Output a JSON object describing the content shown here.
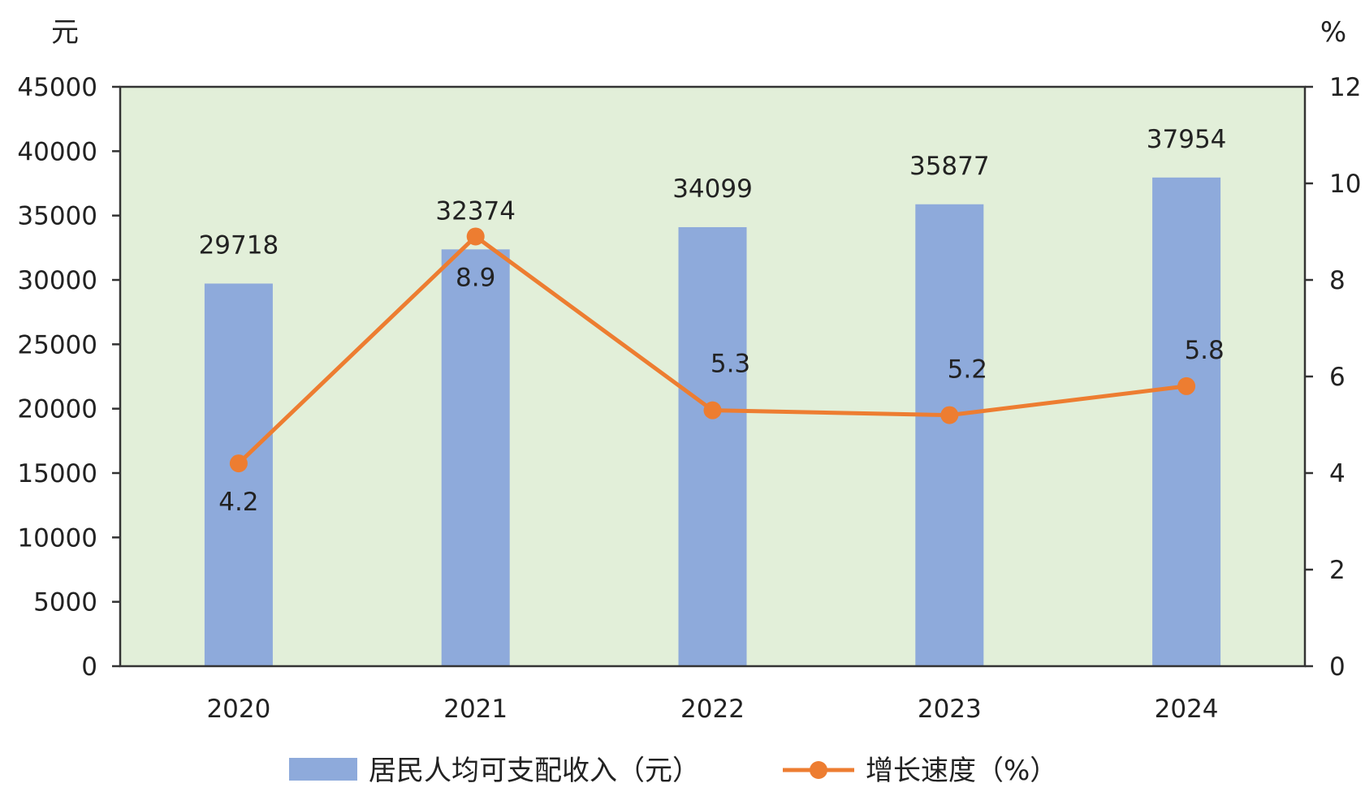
{
  "chart_data": {
    "type": "bar",
    "categories": [
      "2020",
      "2021",
      "2022",
      "2023",
      "2024"
    ],
    "series": [
      {
        "name": "居民人均可支配收入（元）",
        "type": "bar",
        "axis": "left",
        "values": [
          29718,
          32374,
          34099,
          35877,
          37954
        ]
      },
      {
        "name": "增长速度（%）",
        "type": "line",
        "axis": "right",
        "values": [
          4.2,
          8.9,
          5.3,
          5.2,
          5.8
        ]
      }
    ],
    "bar_labels": [
      "29718",
      "32374",
      "34099",
      "35877",
      "37954"
    ],
    "line_labels": [
      "4.2",
      "8.9",
      "5.3",
      "5.2",
      "5.8"
    ],
    "left_axis": {
      "unit": "元",
      "ylim": [
        0,
        45000
      ],
      "ticks": [
        0,
        5000,
        10000,
        15000,
        20000,
        25000,
        30000,
        35000,
        40000,
        45000
      ],
      "tick_labels": [
        "0",
        "5000",
        "10000",
        "15000",
        "20000",
        "25000",
        "30000",
        "35000",
        "40000",
        "45000"
      ]
    },
    "right_axis": {
      "unit": "%",
      "ylim": [
        0,
        12
      ],
      "ticks": [
        0,
        2,
        4,
        6,
        8,
        10,
        12
      ],
      "tick_labels": [
        "0",
        "2",
        "4",
        "6",
        "8",
        "10",
        "12"
      ]
    },
    "grid": false,
    "legend_position": "bottom",
    "colors": {
      "bar": "#8eaadb",
      "line": "#ed7d31",
      "plot_background": "#e2efd9",
      "axis": "#333333"
    }
  }
}
